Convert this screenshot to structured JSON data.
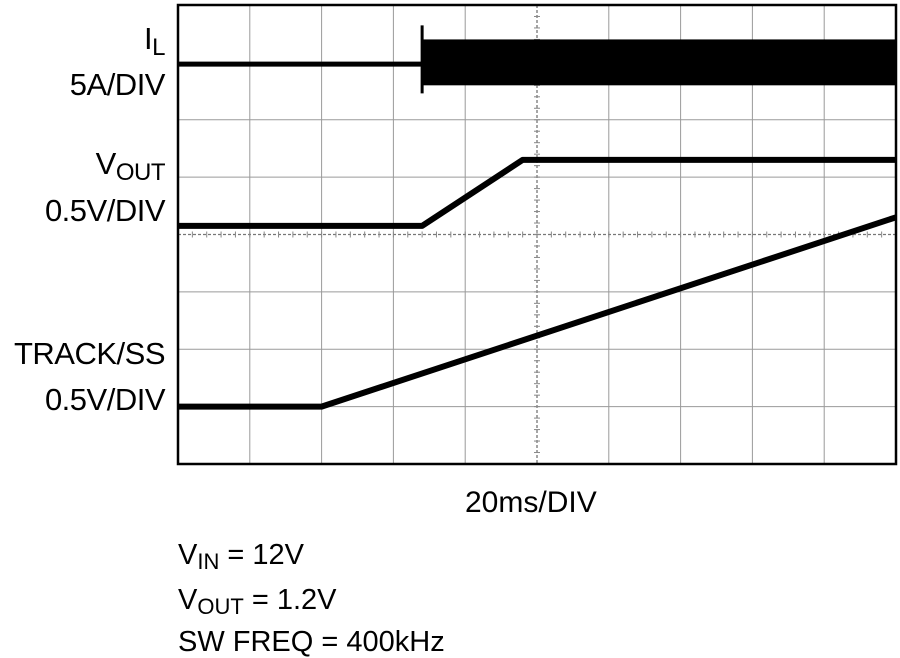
{
  "chart_data": {
    "type": "line",
    "title": "",
    "x_divisions": 10,
    "y_divisions": 8,
    "xlabel": "20ms/DIV",
    "grid": true,
    "series": [
      {
        "name": "IL",
        "scale": "5A/DIV",
        "style": "switching-band",
        "baseline_div": 6.97,
        "start_div": 3.4,
        "band_top_div": 7.4,
        "band_bottom_div": 6.6
      },
      {
        "name": "VOUT",
        "scale": "0.5V/DIV",
        "points_div": [
          [
            0,
            4.15
          ],
          [
            3.4,
            4.15
          ],
          [
            4.8,
            5.3
          ],
          [
            10,
            5.3
          ]
        ]
      },
      {
        "name": "TRACK/SS",
        "scale": "0.5V/DIV",
        "points_div": [
          [
            0,
            1.0
          ],
          [
            2.0,
            1.0
          ],
          [
            10,
            4.3
          ]
        ]
      }
    ]
  },
  "labels": {
    "il": {
      "main": "I",
      "sub": "L",
      "scale": "5A/DIV"
    },
    "vout": {
      "main": "V",
      "sub": "OUT",
      "scale": "0.5V/DIV"
    },
    "track": {
      "main": "TRACK/SS",
      "scale": "0.5V/DIV"
    }
  },
  "conditions": [
    {
      "main": "V",
      "sub": "IN",
      "rest": " = 12V"
    },
    {
      "main": "V",
      "sub": "OUT",
      "rest": " = 1.2V"
    },
    {
      "main": "SW FREQ = 400kHz",
      "sub": "",
      "rest": ""
    }
  ]
}
